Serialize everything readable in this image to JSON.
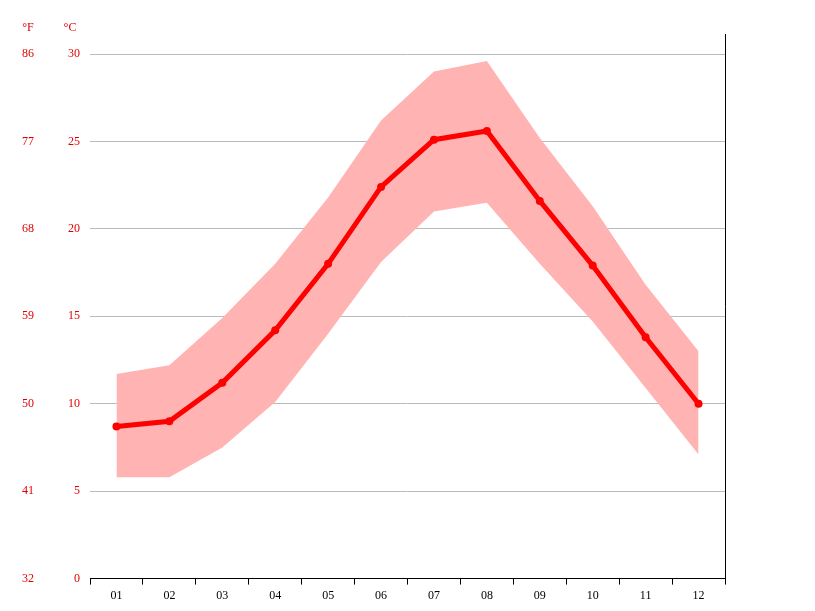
{
  "chart_data": {
    "type": "line",
    "categories": [
      "01",
      "02",
      "03",
      "04",
      "05",
      "06",
      "07",
      "08",
      "09",
      "10",
      "11",
      "12"
    ],
    "series": [
      {
        "color": "#ff0000",
        "values": [
          8.7,
          9.0,
          11.2,
          14.2,
          18.0,
          22.4,
          25.1,
          25.6,
          21.6,
          17.9,
          13.8,
          10.0
        ],
        "band_low": [
          5.8,
          5.8,
          7.5,
          10.1,
          14.0,
          18.1,
          21.0,
          21.5,
          18.0,
          14.7,
          10.9,
          7.1
        ],
        "band_high": [
          11.7,
          12.2,
          14.9,
          18.0,
          21.8,
          26.2,
          29.0,
          29.6,
          25.2,
          21.3,
          16.8,
          13.0
        ],
        "band_color": "#ffb3b3"
      }
    ],
    "y_label": "°C",
    "ylim": [
      0,
      30
    ],
    "yticks": [
      0,
      5,
      10,
      15,
      20,
      25,
      30
    ],
    "y2_label": "°F",
    "y2lim": [
      32,
      86
    ],
    "y2ticks": [
      32,
      41,
      50,
      59,
      68,
      77,
      86
    ],
    "grid": true
  }
}
